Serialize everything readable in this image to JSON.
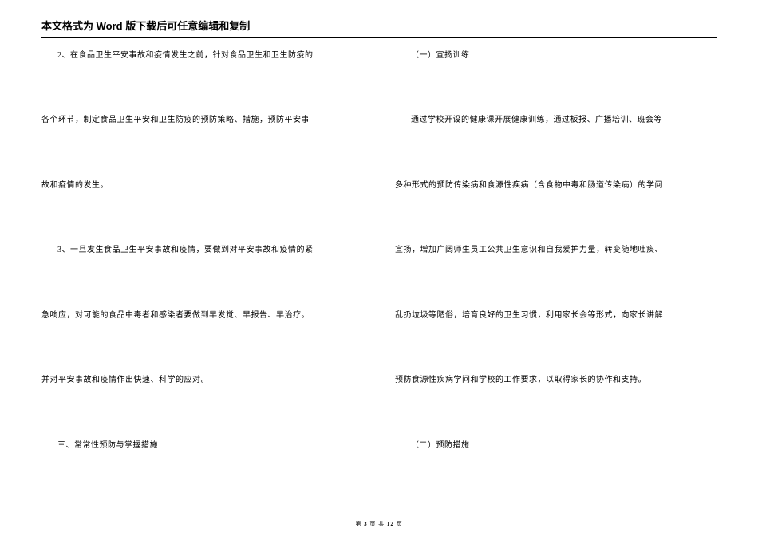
{
  "header": {
    "title": "本文格式为 Word 版下载后可任意编辑和复制"
  },
  "leftColumn": {
    "p1": "2、在食品卫生平安事故和疫情发生之前，针对食品卫生和卫生防疫的",
    "p2": "各个环节，制定食品卫生平安和卫生防疫的预防策略、措施，预防平安事",
    "p3": "故和疫情的发生。",
    "p4": "3、一旦发生食品卫生平安事故和疫情，要做到对平安事故和疫情的紧",
    "p5": "急响应，对可能的食品中毒者和感染者要做到早发觉、早报告、早治疗。",
    "p6": "并对平安事故和疫情作出快速、科学的应对。",
    "p7": "三、常常性预防与掌握措施"
  },
  "rightColumn": {
    "p1": "（一）宣扬训练",
    "p2": "通过学校开设的健康课开展健康训练，通过板报、广播培训、班会等",
    "p3": "多种形式的预防传染病和食源性疾病（含食物中毒和肠道传染病）的学问",
    "p4": "宣扬，增加广阔师生员工公共卫生意识和自我爱护力量，转变随地吐痰、",
    "p5": "乱扔垃圾等陋俗，培育良好的卫生习惯，利用家长会等形式，向家长讲解",
    "p6": "预防食源性疾病学问和学校的工作要求，以取得家长的协作和支持。",
    "p7": "（二）预防措施"
  },
  "footer": {
    "prefix": "第",
    "current": "3",
    "mid": "页 共",
    "total": "12",
    "suffix": "页"
  },
  "style": {
    "background": "#ffffff",
    "text_color": "#000000",
    "header_fontsize": 13,
    "body_fontsize": 10,
    "footer_fontsize": 7
  }
}
